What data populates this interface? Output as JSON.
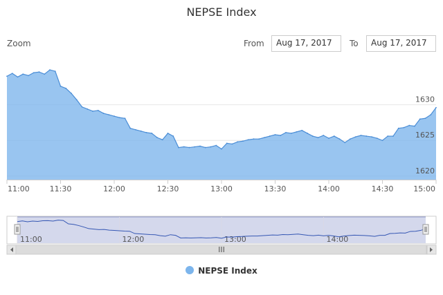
{
  "title": "NEPSE Index",
  "zoom_label": "Zoom",
  "range": {
    "from_label": "From",
    "from_value": "Aug 17, 2017",
    "to_label": "To",
    "to_value": "Aug 17, 2017"
  },
  "navigator": {
    "scrollbar_grip": "III",
    "tick_labels": [
      "11:00",
      "12:00",
      "13:00",
      "14:00"
    ]
  },
  "legend": {
    "label": "NEPSE Index"
  },
  "colors": {
    "series": "#7cb5ec",
    "line": "#4a8dd6",
    "navigator_line": "#3456b3"
  },
  "chart_data": {
    "type": "area",
    "title": "NEPSE Index",
    "xlabel": "",
    "ylabel": "",
    "grid": true,
    "legend_position": "bottom",
    "xlim": [
      "11:00",
      "15:00"
    ],
    "ylim": [
      1619.5,
      1635.2
    ],
    "x_ticks": [
      "11:00",
      "11:30",
      "12:00",
      "12:30",
      "13:00",
      "13:30",
      "14:00",
      "14:30",
      "15:00"
    ],
    "y_ticks": [
      1620,
      1625,
      1630
    ],
    "series": [
      {
        "name": "NEPSE Index",
        "x": [
          "11:00",
          "11:03",
          "11:06",
          "11:09",
          "11:12",
          "11:15",
          "11:18",
          "11:21",
          "11:24",
          "11:27",
          "11:30",
          "11:33",
          "11:36",
          "11:39",
          "11:42",
          "11:45",
          "11:48",
          "11:51",
          "11:54",
          "11:57",
          "12:00",
          "12:03",
          "12:06",
          "12:09",
          "12:12",
          "12:15",
          "12:18",
          "12:21",
          "12:24",
          "12:27",
          "12:30",
          "12:33",
          "12:36",
          "12:39",
          "12:42",
          "12:45",
          "12:48",
          "12:51",
          "12:54",
          "12:57",
          "13:00",
          "13:03",
          "13:06",
          "13:09",
          "13:12",
          "13:15",
          "13:18",
          "13:21",
          "13:24",
          "13:27",
          "13:30",
          "13:33",
          "13:36",
          "13:39",
          "13:42",
          "13:45",
          "13:48",
          "13:51",
          "13:54",
          "13:57",
          "14:00",
          "14:03",
          "14:06",
          "14:09",
          "14:12",
          "14:15",
          "14:18",
          "14:21",
          "14:24",
          "14:27",
          "14:30",
          "14:33",
          "14:36",
          "14:39",
          "14:42",
          "14:45",
          "14:48",
          "14:51",
          "14:54",
          "14:57",
          "15:00"
        ],
        "values": [
          1634.0,
          1634.4,
          1633.9,
          1634.3,
          1634.1,
          1634.5,
          1634.6,
          1634.3,
          1634.9,
          1634.7,
          1632.6,
          1632.3,
          1631.6,
          1630.7,
          1629.7,
          1629.4,
          1629.1,
          1629.2,
          1628.8,
          1628.6,
          1628.4,
          1628.2,
          1628.1,
          1626.7,
          1626.5,
          1626.3,
          1626.1,
          1626.0,
          1625.4,
          1625.1,
          1626.0,
          1625.6,
          1624.0,
          1624.1,
          1624.0,
          1624.1,
          1624.2,
          1624.0,
          1624.1,
          1624.3,
          1623.8,
          1624.6,
          1624.5,
          1624.8,
          1624.9,
          1625.1,
          1625.2,
          1625.2,
          1625.4,
          1625.6,
          1625.8,
          1625.7,
          1626.1,
          1626.0,
          1626.2,
          1626.4,
          1626.0,
          1625.6,
          1625.4,
          1625.7,
          1625.3,
          1625.6,
          1625.2,
          1624.7,
          1625.2,
          1625.5,
          1625.7,
          1625.6,
          1625.5,
          1625.3,
          1625.0,
          1625.6,
          1625.6,
          1626.7,
          1626.8,
          1627.1,
          1627.0,
          1628.0,
          1628.1,
          1628.6,
          1629.6
        ]
      }
    ]
  }
}
